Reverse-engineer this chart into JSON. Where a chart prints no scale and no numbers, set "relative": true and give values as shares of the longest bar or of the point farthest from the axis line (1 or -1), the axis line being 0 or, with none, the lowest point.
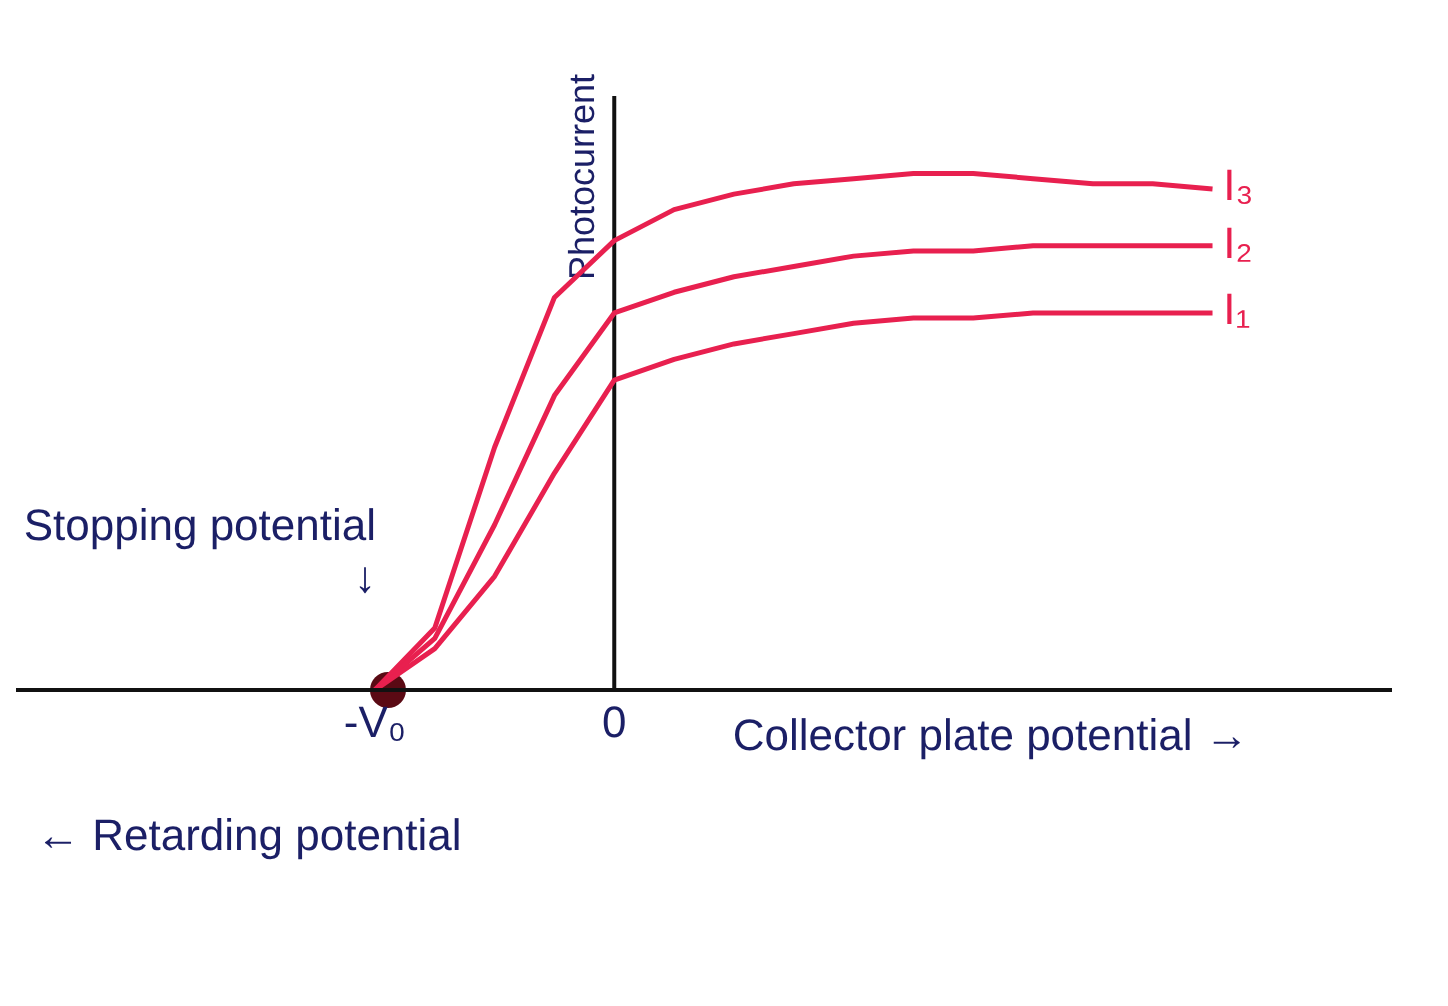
{
  "chart_data": {
    "type": "line",
    "relative": true,
    "ylabel": "Photocurrent",
    "xlabel": "Collector plate potential →",
    "categories": [
      null,
      null,
      null,
      null,
      null,
      null,
      "-V₀",
      null,
      null,
      null,
      "0",
      null,
      null,
      null,
      null,
      null,
      null,
      null,
      null,
      null,
      null,
      null,
      null,
      null
    ],
    "ref_lines": [
      {
        "axis": "x",
        "value": "0",
        "color": "#111111"
      }
    ],
    "annotations": [
      "Stopping potential ↓",
      "← Retarding potential"
    ],
    "marker": "none",
    "line_style": "solid",
    "series": [
      {
        "name": "I₃",
        "color": "#e8204f",
        "values": [
          null,
          null,
          null,
          null,
          null,
          null,
          0,
          0.12,
          0.47,
          0.76,
          0.87,
          0.93,
          0.96,
          0.98,
          0.99,
          1.0,
          1.0,
          0.99,
          0.98,
          0.98,
          0.97,
          null,
          null,
          null
        ]
      },
      {
        "name": "I₂",
        "color": "#e8204f",
        "values": [
          null,
          null,
          null,
          null,
          null,
          null,
          0,
          0.1,
          0.32,
          0.57,
          0.73,
          0.77,
          0.8,
          0.82,
          0.84,
          0.85,
          0.85,
          0.86,
          0.86,
          0.86,
          0.86,
          null,
          null,
          null
        ]
      },
      {
        "name": "I₁",
        "color": "#e8204f",
        "values": [
          null,
          null,
          null,
          null,
          null,
          null,
          0,
          0.08,
          0.22,
          0.42,
          0.6,
          0.64,
          0.67,
          0.69,
          0.71,
          0.72,
          0.72,
          0.73,
          0.73,
          0.73,
          0.73,
          null,
          null,
          null
        ]
      }
    ]
  }
}
